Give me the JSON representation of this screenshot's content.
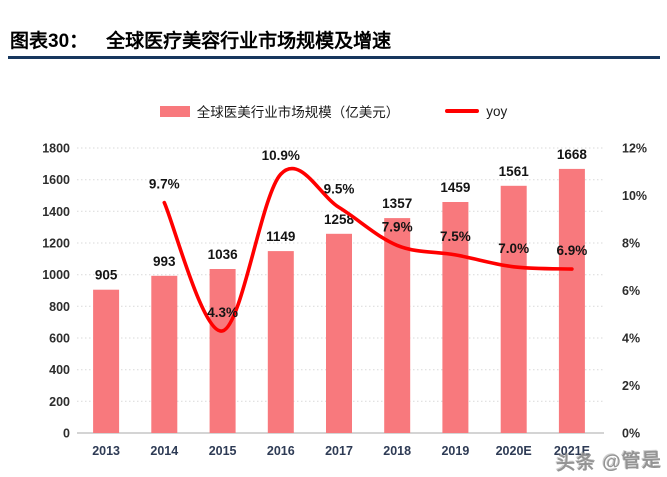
{
  "header": {
    "figure_label": "图表30：",
    "title": "全球医疗美容行业市场规模及增速"
  },
  "watermark": {
    "text": "头条 @管是"
  },
  "colors": {
    "bar": "#F8797D",
    "line": "#FF0000",
    "divider": "#17375E",
    "grid": "#D9D9D9",
    "axis_line": "#C6C6C6",
    "axis_text": "#2D2D2D",
    "category_text": "#2E3B55",
    "label_text": "#141414"
  },
  "chart_data": {
    "type": "bar+line combo",
    "title": "全球医疗美容行业市场规模及增速",
    "legend_position": "top-center",
    "grid": "horizontal-dotted",
    "categories": [
      "2013",
      "2014",
      "2015",
      "2016",
      "2017",
      "2018",
      "2019",
      "2020E",
      "2021E"
    ],
    "series": [
      {
        "name": "全球医美行业市场规模（亿美元）",
        "type": "bar",
        "axis": "left",
        "values": [
          905,
          993,
          1036,
          1149,
          1258,
          1357,
          1459,
          1561,
          1668
        ],
        "labels": [
          "905",
          "993",
          "1036",
          "1149",
          "1258",
          "1357",
          "1459",
          "1561",
          "1668"
        ]
      },
      {
        "name": "yoy",
        "type": "line",
        "axis": "right",
        "values": [
          null,
          9.7,
          4.3,
          10.9,
          9.5,
          7.9,
          7.5,
          7.0,
          6.9
        ],
        "labels": [
          "",
          "9.7%",
          "4.3%",
          "10.9%",
          "9.5%",
          "7.9%",
          "7.5%",
          "7.0%",
          "6.9%"
        ]
      }
    ],
    "left_axis": {
      "min": 0,
      "max": 1800,
      "step": 200,
      "ticks": [
        "0",
        "200",
        "400",
        "600",
        "800",
        "1000",
        "1200",
        "1400",
        "1600",
        "1800"
      ]
    },
    "right_axis": {
      "min": 0,
      "max": 12,
      "step": 2,
      "suffix": "%",
      "ticks": [
        "0%",
        "2%",
        "4%",
        "6%",
        "8%",
        "10%",
        "12%"
      ]
    }
  }
}
